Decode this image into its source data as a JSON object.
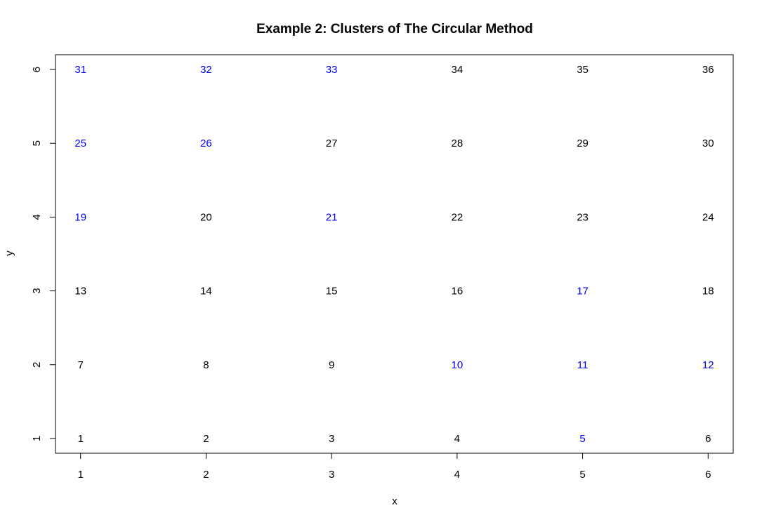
{
  "chart_data": {
    "type": "scatter",
    "title": "Example 2: Clusters of The Circular Method",
    "xlabel": "x",
    "ylabel": "y",
    "xlim": [
      0.8,
      6.2
    ],
    "ylim": [
      0.8,
      6.2
    ],
    "x_ticks": [
      "1",
      "2",
      "3",
      "4",
      "5",
      "6"
    ],
    "y_ticks": [
      "1",
      "2",
      "3",
      "4",
      "5",
      "6"
    ],
    "grid": false,
    "colors": {
      "highlighted": "#0000ff",
      "default": "#000000"
    },
    "points": [
      {
        "x": 1,
        "y": 1,
        "label": "1",
        "highlighted": false
      },
      {
        "x": 2,
        "y": 1,
        "label": "2",
        "highlighted": false
      },
      {
        "x": 3,
        "y": 1,
        "label": "3",
        "highlighted": false
      },
      {
        "x": 4,
        "y": 1,
        "label": "4",
        "highlighted": false
      },
      {
        "x": 5,
        "y": 1,
        "label": "5",
        "highlighted": true
      },
      {
        "x": 6,
        "y": 1,
        "label": "6",
        "highlighted": false
      },
      {
        "x": 1,
        "y": 2,
        "label": "7",
        "highlighted": false
      },
      {
        "x": 2,
        "y": 2,
        "label": "8",
        "highlighted": false
      },
      {
        "x": 3,
        "y": 2,
        "label": "9",
        "highlighted": false
      },
      {
        "x": 4,
        "y": 2,
        "label": "10",
        "highlighted": true
      },
      {
        "x": 5,
        "y": 2,
        "label": "11",
        "highlighted": true
      },
      {
        "x": 6,
        "y": 2,
        "label": "12",
        "highlighted": true
      },
      {
        "x": 1,
        "y": 3,
        "label": "13",
        "highlighted": false
      },
      {
        "x": 2,
        "y": 3,
        "label": "14",
        "highlighted": false
      },
      {
        "x": 3,
        "y": 3,
        "label": "15",
        "highlighted": false
      },
      {
        "x": 4,
        "y": 3,
        "label": "16",
        "highlighted": false
      },
      {
        "x": 5,
        "y": 3,
        "label": "17",
        "highlighted": true
      },
      {
        "x": 6,
        "y": 3,
        "label": "18",
        "highlighted": false
      },
      {
        "x": 1,
        "y": 4,
        "label": "19",
        "highlighted": true
      },
      {
        "x": 2,
        "y": 4,
        "label": "20",
        "highlighted": false
      },
      {
        "x": 3,
        "y": 4,
        "label": "21",
        "highlighted": true
      },
      {
        "x": 4,
        "y": 4,
        "label": "22",
        "highlighted": false
      },
      {
        "x": 5,
        "y": 4,
        "label": "23",
        "highlighted": false
      },
      {
        "x": 6,
        "y": 4,
        "label": "24",
        "highlighted": false
      },
      {
        "x": 1,
        "y": 5,
        "label": "25",
        "highlighted": true
      },
      {
        "x": 2,
        "y": 5,
        "label": "26",
        "highlighted": true
      },
      {
        "x": 3,
        "y": 5,
        "label": "27",
        "highlighted": false
      },
      {
        "x": 4,
        "y": 5,
        "label": "28",
        "highlighted": false
      },
      {
        "x": 5,
        "y": 5,
        "label": "29",
        "highlighted": false
      },
      {
        "x": 6,
        "y": 5,
        "label": "30",
        "highlighted": false
      },
      {
        "x": 1,
        "y": 6,
        "label": "31",
        "highlighted": true
      },
      {
        "x": 2,
        "y": 6,
        "label": "32",
        "highlighted": true
      },
      {
        "x": 3,
        "y": 6,
        "label": "33",
        "highlighted": true
      },
      {
        "x": 4,
        "y": 6,
        "label": "34",
        "highlighted": false
      },
      {
        "x": 5,
        "y": 6,
        "label": "35",
        "highlighted": false
      },
      {
        "x": 6,
        "y": 6,
        "label": "36",
        "highlighted": false
      }
    ]
  }
}
